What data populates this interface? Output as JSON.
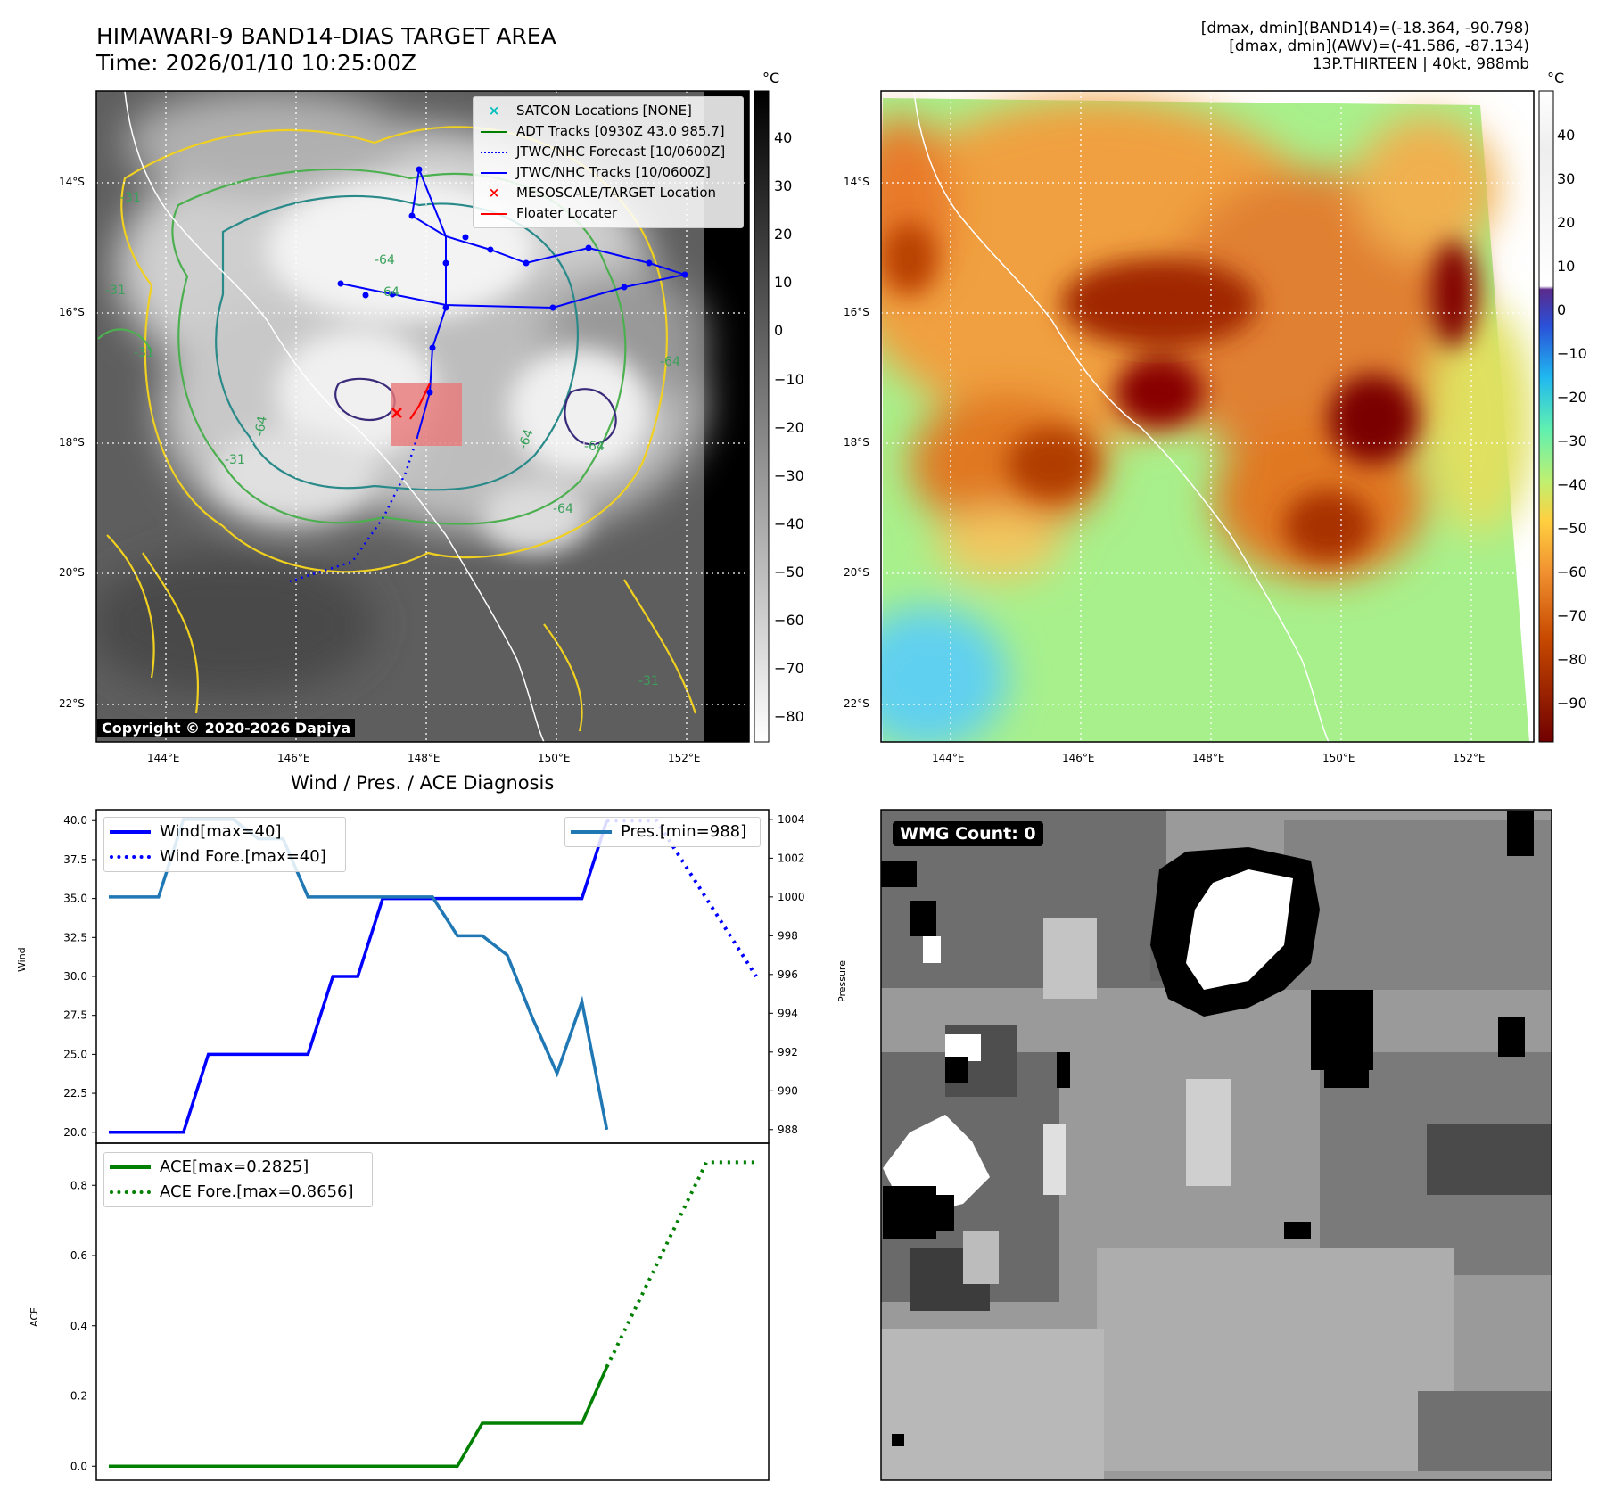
{
  "header": {
    "title_line1": "HIMAWARI-9 BAND14-DIAS TARGET AREA",
    "title_line2": "Time: 2026/01/10 10:25:00Z",
    "stats_line1": "[dmax, dmin](BAND14)=(-18.364, -90.798)",
    "stats_line2": "[dmax, dmin](AWV)=(-41.586, -87.134)",
    "stats_line3": "13P.THIRTEEN | 40kt, 988mb"
  },
  "map_panels": {
    "lat_labels": [
      "14°S",
      "16°S",
      "18°S",
      "20°S",
      "22°S"
    ],
    "lon_labels": [
      "144°E",
      "146°E",
      "148°E",
      "150°E",
      "152°E"
    ],
    "copyright": "Copyright © 2020-2026 Dapiya",
    "contour_labels": [
      "-31",
      "-64",
      "-31",
      "-64",
      "-64",
      "-64",
      "-31",
      "-64",
      "-31",
      "-64",
      "-64",
      "-31"
    ],
    "legend": [
      {
        "label": "SATCON Locations [NONE]",
        "color": "#00bfbf",
        "marker": "x"
      },
      {
        "label": "ADT Tracks [0930Z 43.0 985.7]",
        "color": "#008000",
        "marker": "line"
      },
      {
        "label": "JTWC/NHC Forecast [10/0600Z]",
        "color": "#0000ff",
        "marker": "dotted"
      },
      {
        "label": "JTWC/NHC Tracks [10/0600Z]",
        "color": "#0000ff",
        "marker": "line-dot"
      },
      {
        "label": "MESOSCALE/TARGET Location",
        "color": "#ff0000",
        "marker": "x"
      },
      {
        "label": "Floater Locater",
        "color": "#ff0000",
        "marker": "line"
      }
    ]
  },
  "colorbar_gray": {
    "unit": "°C",
    "ticks": [
      "40",
      "30",
      "20",
      "10",
      "0",
      "−10",
      "−20",
      "−30",
      "−40",
      "−50",
      "−60",
      "−70",
      "−80"
    ]
  },
  "colorbar_color": {
    "unit": "°C",
    "ticks": [
      "40",
      "30",
      "20",
      "10",
      "0",
      "−10",
      "−20",
      "−30",
      "−40",
      "−50",
      "−60",
      "−70",
      "−80",
      "−90"
    ],
    "colors": [
      "#ffffff",
      "#3c1e8c",
      "#1e64e6",
      "#32c8f0",
      "#7ff59b",
      "#c8f56e",
      "#ffc83c",
      "#f08228",
      "#c84600",
      "#780000"
    ]
  },
  "wmg_panel": {
    "label": "WMG Count: 0"
  },
  "chart_data": [
    {
      "type": "line",
      "title": "Wind / Pres. / ACE Diagnosis",
      "ylabel": "Wind",
      "ylabel_right": "Pressure",
      "ylim": [
        19.3,
        40.7
      ],
      "ylim_right": [
        987.3,
        1004.5
      ],
      "x": [
        0,
        1,
        2,
        3,
        4,
        5,
        6,
        7,
        8,
        9,
        10,
        11,
        12,
        13,
        14,
        15,
        16,
        17,
        18,
        19,
        20,
        21,
        22,
        23,
        24,
        25,
        26
      ],
      "yticks": [
        "40.0",
        "37.5",
        "35.0",
        "32.5",
        "30.0",
        "27.5",
        "25.0",
        "22.5",
        "20.0"
      ],
      "yticks_right": [
        "1004",
        "1002",
        "1000",
        "998",
        "996",
        "994",
        "992",
        "990",
        "988"
      ],
      "series": [
        {
          "name": "Wind[max=40]",
          "color": "#0000ff",
          "style": "solid",
          "x": [
            0,
            1,
            2,
            3,
            4,
            5,
            6,
            7,
            8,
            9,
            10,
            11,
            12,
            13,
            14,
            15,
            16,
            17,
            18,
            19,
            20
          ],
          "values": [
            20,
            20,
            20,
            20,
            25,
            25,
            25,
            25,
            25,
            30,
            30,
            35,
            35,
            35,
            35,
            35,
            35,
            35,
            35,
            35,
            40
          ]
        },
        {
          "name": "Wind Fore.[max=40]",
          "color": "#0000ff",
          "style": "dotted",
          "x": [
            20,
            22,
            26
          ],
          "values": [
            40,
            40,
            30
          ]
        },
        {
          "name": "Pres.[min=988]",
          "color": "#1f77b4",
          "style": "solid",
          "axis": "right",
          "x": [
            0,
            1,
            2,
            3,
            4,
            5,
            6,
            7,
            8,
            9,
            10,
            11,
            12,
            13,
            14,
            15,
            16,
            17,
            18,
            19,
            20
          ],
          "values": [
            1000,
            1000,
            1000,
            1004,
            1004,
            1004,
            1003,
            1003,
            1000,
            1000,
            1000,
            1000,
            1000,
            1000,
            998,
            998,
            997,
            993.8,
            990.9,
            994.6,
            988
          ]
        }
      ]
    },
    {
      "type": "line",
      "ylabel": "ACE",
      "ylim": [
        -0.04,
        0.92
      ],
      "x": [
        0,
        1,
        2,
        3,
        4,
        5,
        6,
        7,
        8,
        9,
        10,
        11,
        12,
        13,
        14,
        15,
        16,
        17,
        18,
        19,
        20,
        21,
        22,
        23,
        24,
        25,
        26
      ],
      "yticks": [
        "0.8",
        "0.6",
        "0.4",
        "0.2",
        "0.0"
      ],
      "series": [
        {
          "name": "ACE[max=0.2825]",
          "color": "#008000",
          "style": "solid",
          "x": [
            0,
            14,
            15,
            19,
            20
          ],
          "values": [
            0,
            0,
            0.1225,
            0.1225,
            0.2825
          ]
        },
        {
          "name": "ACE Fore.[max=0.8656]",
          "color": "#008000",
          "style": "dotted",
          "x": [
            20,
            24,
            26
          ],
          "values": [
            0.2825,
            0.8656,
            0.8656
          ]
        }
      ]
    }
  ]
}
